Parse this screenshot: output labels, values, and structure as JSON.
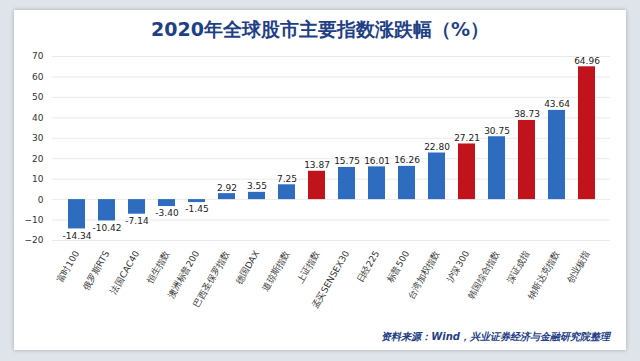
{
  "chart_data": {
    "type": "bar",
    "title": "2020年全球股市主要指数涨跌幅（%）",
    "source": "资料来源：Wind，兴业证券经济与金融研究院整理",
    "categories": [
      "富时100",
      "俄罗斯RTS",
      "法国CAC40",
      "恒生指数",
      "澳洲标普200",
      "巴西圣保罗指数",
      "德国DAX",
      "道琼斯指数",
      "上证指数",
      "孟买SENSEX30",
      "日经225",
      "标普500",
      "台湾加权指数",
      "沪深300",
      "韩国综合指数",
      "深证成指",
      "纳斯达克指数",
      "创业板指"
    ],
    "values": [
      -14.34,
      -10.42,
      -7.14,
      -3.4,
      -1.45,
      2.92,
      3.55,
      7.25,
      13.87,
      15.75,
      16.01,
      16.26,
      22.8,
      27.21,
      30.75,
      38.73,
      43.64,
      64.96
    ],
    "value_labels": [
      "-14.34",
      "-10.42",
      "-7.14",
      "-3.40",
      "-1.45",
      "2.92",
      "3.55",
      "7.25",
      "13.87",
      "15.75",
      "16.01",
      "16.26",
      "22.80",
      "27.21",
      "30.75",
      "38.73",
      "43.64",
      "64.96"
    ],
    "colors": [
      "#2e6cc0",
      "#2e6cc0",
      "#2e6cc0",
      "#2e6cc0",
      "#2e6cc0",
      "#2e6cc0",
      "#2e6cc0",
      "#2e6cc0",
      "#c0131b",
      "#2e6cc0",
      "#2e6cc0",
      "#2e6cc0",
      "#2e6cc0",
      "#c0131b",
      "#2e6cc0",
      "#c0131b",
      "#2e6cc0",
      "#c0131b"
    ],
    "ylim": [
      -20,
      70
    ],
    "yticks": [
      -20,
      -10,
      0,
      10,
      20,
      30,
      40,
      50,
      60,
      70
    ],
    "grid": true,
    "data_labels": true
  }
}
